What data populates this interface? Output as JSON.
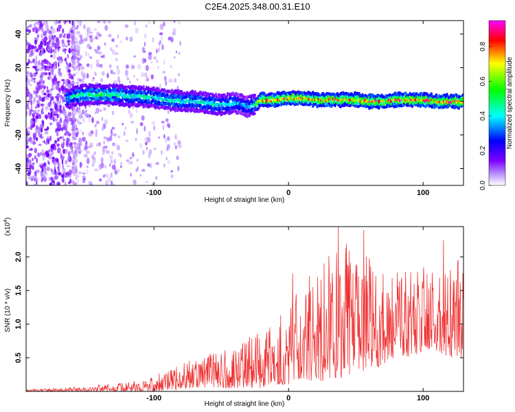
{
  "title": "C2E4.2025.348.00.31.E10",
  "chart_data": [
    {
      "type": "heatmap",
      "title": "C2E4.2025.348.00.31.E10",
      "xlabel": "Height of straight line (km)",
      "ylabel": "Frequency (Hz)",
      "xlim": [
        -195,
        130
      ],
      "ylim": [
        -50,
        48
      ],
      "xticks": [
        -100,
        0,
        100
      ],
      "yticks": [
        -40,
        -20,
        0,
        20,
        40
      ],
      "colorbar": {
        "label": "Normalized spectral amplitude",
        "range": [
          0,
          0.95
        ],
        "ticks": [
          "0.0",
          "0.2",
          "0.4",
          "0.6",
          "0.8"
        ],
        "tick_values": [
          0,
          0.2,
          0.4,
          0.6,
          0.8
        ],
        "colors": [
          "#ffffff",
          "#7f00ff",
          "#0000ff",
          "#00ffff",
          "#00ff00",
          "#ffff00",
          "#ff0000",
          "#ff00ff"
        ]
      },
      "profile": {
        "description_points_x": [
          -195,
          -170,
          -160,
          -150,
          -140,
          -130,
          -120,
          -110,
          -100,
          -90,
          -80,
          -70,
          -60,
          -50,
          -40,
          -30,
          -25,
          -20,
          -10,
          0,
          10,
          20,
          30,
          40,
          50,
          60,
          70,
          80,
          90,
          100,
          110,
          120,
          130
        ],
        "center_freq": [
          0,
          0,
          3,
          4,
          4,
          4,
          3,
          3,
          2,
          1,
          0,
          0,
          -1,
          -2,
          -1,
          -3,
          -2,
          1,
          1,
          2,
          2,
          1,
          1,
          1,
          1,
          0,
          0,
          1,
          1,
          1,
          0,
          0,
          0
        ],
        "peak_amplitude": [
          0.3,
          0.35,
          0.45,
          0.5,
          0.5,
          0.5,
          0.45,
          0.45,
          0.45,
          0.45,
          0.45,
          0.45,
          0.45,
          0.45,
          0.4,
          0.35,
          0.5,
          0.8,
          0.8,
          0.85,
          0.8,
          0.8,
          0.85,
          0.8,
          0.8,
          0.85,
          0.85,
          0.85,
          0.85,
          0.85,
          0.85,
          0.85,
          0.85
        ],
        "noise_region_x": [
          -195,
          -160
        ]
      }
    },
    {
      "type": "line",
      "title": "",
      "xlabel": "Height of straight line (km)",
      "ylabel": "SNR (10 * v/v)",
      "y_scale_label": "(x10",
      "y_scale_exponent": "4",
      "y_scale_suffix": ")",
      "xlim": [
        -195,
        130
      ],
      "ylim": [
        0,
        2.45
      ],
      "xticks": [
        -100,
        0,
        100
      ],
      "yticks": [
        0.5,
        1.0,
        1.5,
        2.0
      ],
      "ytick_labels": [
        "0.5",
        "1.0",
        "1.5",
        "2.0"
      ],
      "series": [
        {
          "name": "SNR",
          "color": "#ee3030",
          "x": [
            -195,
            -170,
            -150,
            -130,
            -110,
            -100,
            -90,
            -80,
            -70,
            -60,
            -50,
            -40,
            -30,
            -20,
            -10,
            0,
            10,
            20,
            30,
            40,
            50,
            60,
            70,
            80,
            90,
            100,
            110,
            120,
            130
          ],
          "envelope_max": [
            0.03,
            0.05,
            0.08,
            0.12,
            0.2,
            0.25,
            0.3,
            0.4,
            0.5,
            0.55,
            0.6,
            0.7,
            0.8,
            0.9,
            1.1,
            1.3,
            1.6,
            1.9,
            2.1,
            2.4,
            2.2,
            2.1,
            1.9,
            1.8,
            1.8,
            1.9,
            1.9,
            1.9,
            2.0
          ],
          "envelope_min": [
            0.0,
            0.0,
            0.0,
            0.0,
            0.0,
            0.0,
            0.02,
            0.03,
            0.05,
            0.05,
            0.05,
            0.05,
            0.05,
            0.05,
            0.1,
            0.1,
            0.2,
            0.1,
            0.2,
            0.2,
            0.3,
            0.3,
            0.4,
            0.5,
            0.5,
            0.6,
            0.6,
            0.5,
            0.5
          ],
          "notable_peaks": [
            {
              "x": 37,
              "y": 2.45
            },
            {
              "x": 56,
              "y": 2.4
            },
            {
              "x": 43,
              "y": 2.2
            },
            {
              "x": 115,
              "y": 2.25
            },
            {
              "x": 130,
              "y": 2.1
            },
            {
              "x": 3,
              "y": 1.75
            },
            {
              "x": -14,
              "y": 0.95
            }
          ]
        }
      ]
    }
  ]
}
